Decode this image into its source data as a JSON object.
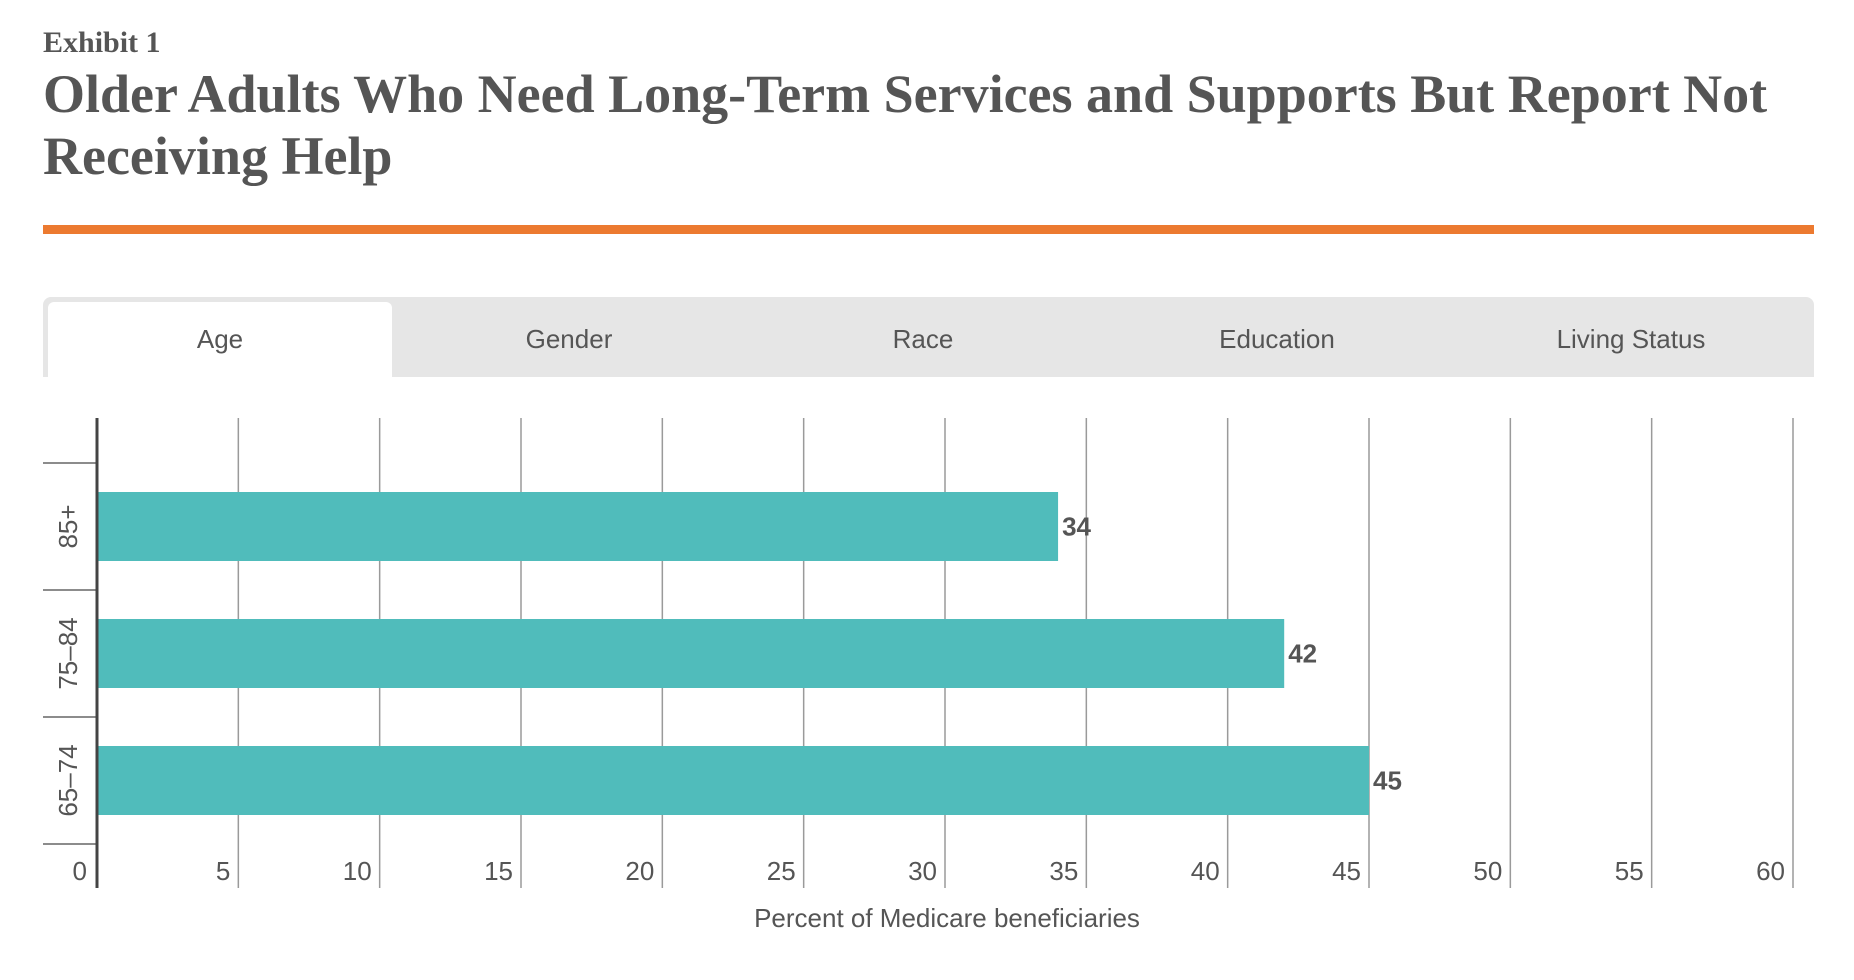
{
  "header": {
    "exhibit": "Exhibit 1",
    "title": "Older Adults Who Need Long-Term Services and Supports But Report Not Receiving Help"
  },
  "tabs": [
    {
      "label": "Age",
      "active": true
    },
    {
      "label": "Gender",
      "active": false
    },
    {
      "label": "Race",
      "active": false
    },
    {
      "label": "Education",
      "active": false
    },
    {
      "label": "Living Status",
      "active": false
    }
  ],
  "colors": {
    "accent": "#ec7a30",
    "bar": "#50bcbb",
    "grid": "#9a9a9a",
    "text": "#555555",
    "tabbar": "#e6e6e6"
  },
  "chart_data": {
    "type": "bar",
    "orientation": "horizontal",
    "categories": [
      "85+",
      "75–84",
      "65–74"
    ],
    "values": [
      34,
      42,
      45
    ],
    "xlabel": "Percent of Medicare beneficiaries",
    "ylabel": "",
    "xlim": [
      0,
      60
    ],
    "xticks": [
      0,
      5,
      10,
      15,
      20,
      25,
      30,
      35,
      40,
      45,
      50,
      55,
      60
    ],
    "grid": true,
    "series_name": "Age"
  }
}
